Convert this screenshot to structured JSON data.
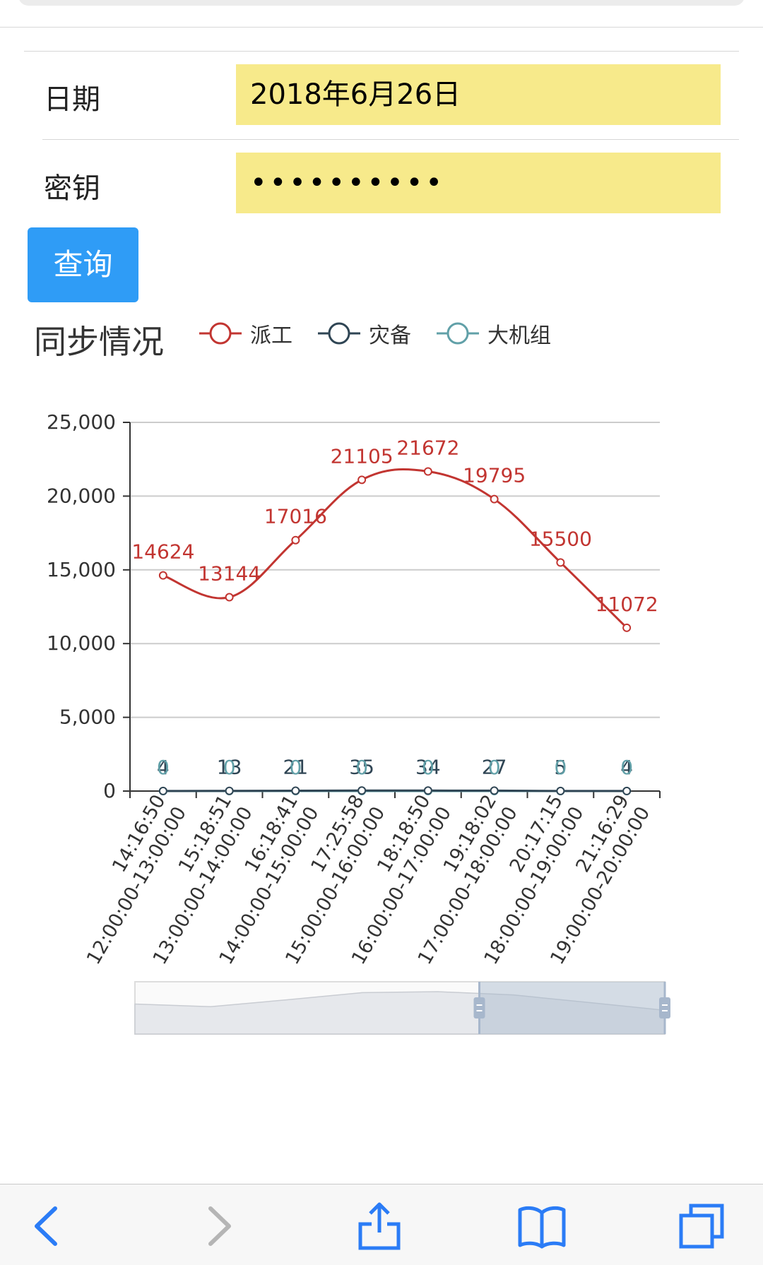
{
  "form": {
    "date_label": "日期",
    "date_value": "2018年6月26日",
    "key_label": "密钥",
    "key_value": "••••••••••",
    "query_button": "查询"
  },
  "chart_title": "同步情况",
  "colors": {
    "paigong": "#c23531",
    "zaibei": "#2f4554",
    "dajizu": "#61a0a8",
    "field_bg": "#f7ea8b",
    "button": "#2f9cf6"
  },
  "chart_data": {
    "type": "line",
    "smooth": true,
    "legend_position": "top",
    "grid": "horizontal",
    "ylim": [
      0,
      25000
    ],
    "yticks": [
      "25,000",
      "20,000",
      "15,000",
      "10,000",
      "5,000",
      "0"
    ],
    "ytick_values": [
      25000,
      20000,
      15000,
      10000,
      5000,
      0
    ],
    "categories": [
      {
        "line1": "14:16:50",
        "line2": "12:00:00-13:00:00"
      },
      {
        "line1": "15:18:51",
        "line2": "13:00:00-14:00:00"
      },
      {
        "line1": "16:18:41",
        "line2": "14:00:00-15:00:00"
      },
      {
        "line1": "17:25:58",
        "line2": "15:00:00-16:00:00"
      },
      {
        "line1": "18:18:50",
        "line2": "16:00:00-17:00:00"
      },
      {
        "line1": "19:18:02",
        "line2": "17:00:00-18:00:00"
      },
      {
        "line1": "20:17:15",
        "line2": "18:00:00-19:00:00"
      },
      {
        "line1": "21:16:29",
        "line2": "19:00:00-20:00:00"
      }
    ],
    "series": [
      {
        "name": "派工",
        "color": "#c23531",
        "values": [
          14624,
          13144,
          17016,
          21105,
          21672,
          19795,
          15500,
          11072
        ]
      },
      {
        "name": "灾备",
        "color": "#2f4554",
        "values": [
          4,
          13,
          21,
          35,
          34,
          27,
          5,
          4
        ]
      },
      {
        "name": "大机组",
        "color": "#61a0a8",
        "values": [
          0,
          0,
          0,
          0,
          0,
          0,
          0,
          0
        ]
      }
    ],
    "datazoom": {
      "start_percent": 65,
      "end_percent": 100
    }
  }
}
